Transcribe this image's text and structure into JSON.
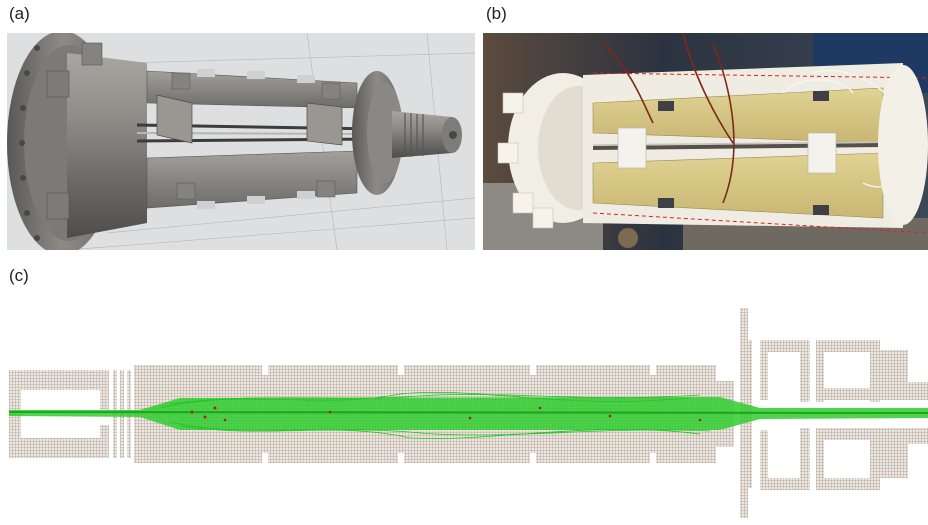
{
  "figure": {
    "panels": [
      {
        "label": "(a)",
        "content": "cad-render"
      },
      {
        "label": "(b)",
        "content": "photograph"
      },
      {
        "label": "(c)",
        "content": "simulation"
      }
    ]
  },
  "colors": {
    "cad_metal": "#8d8b88",
    "cad_background": "#dcdddf",
    "photo_background": "#2a2f3a",
    "photo_plastic": "#f2efe6",
    "photo_pcb": "#d8c98a",
    "mesh_brown": "#b4a89a",
    "trajectory_green": "#22c422",
    "trajectory_red": "#a5241e"
  }
}
